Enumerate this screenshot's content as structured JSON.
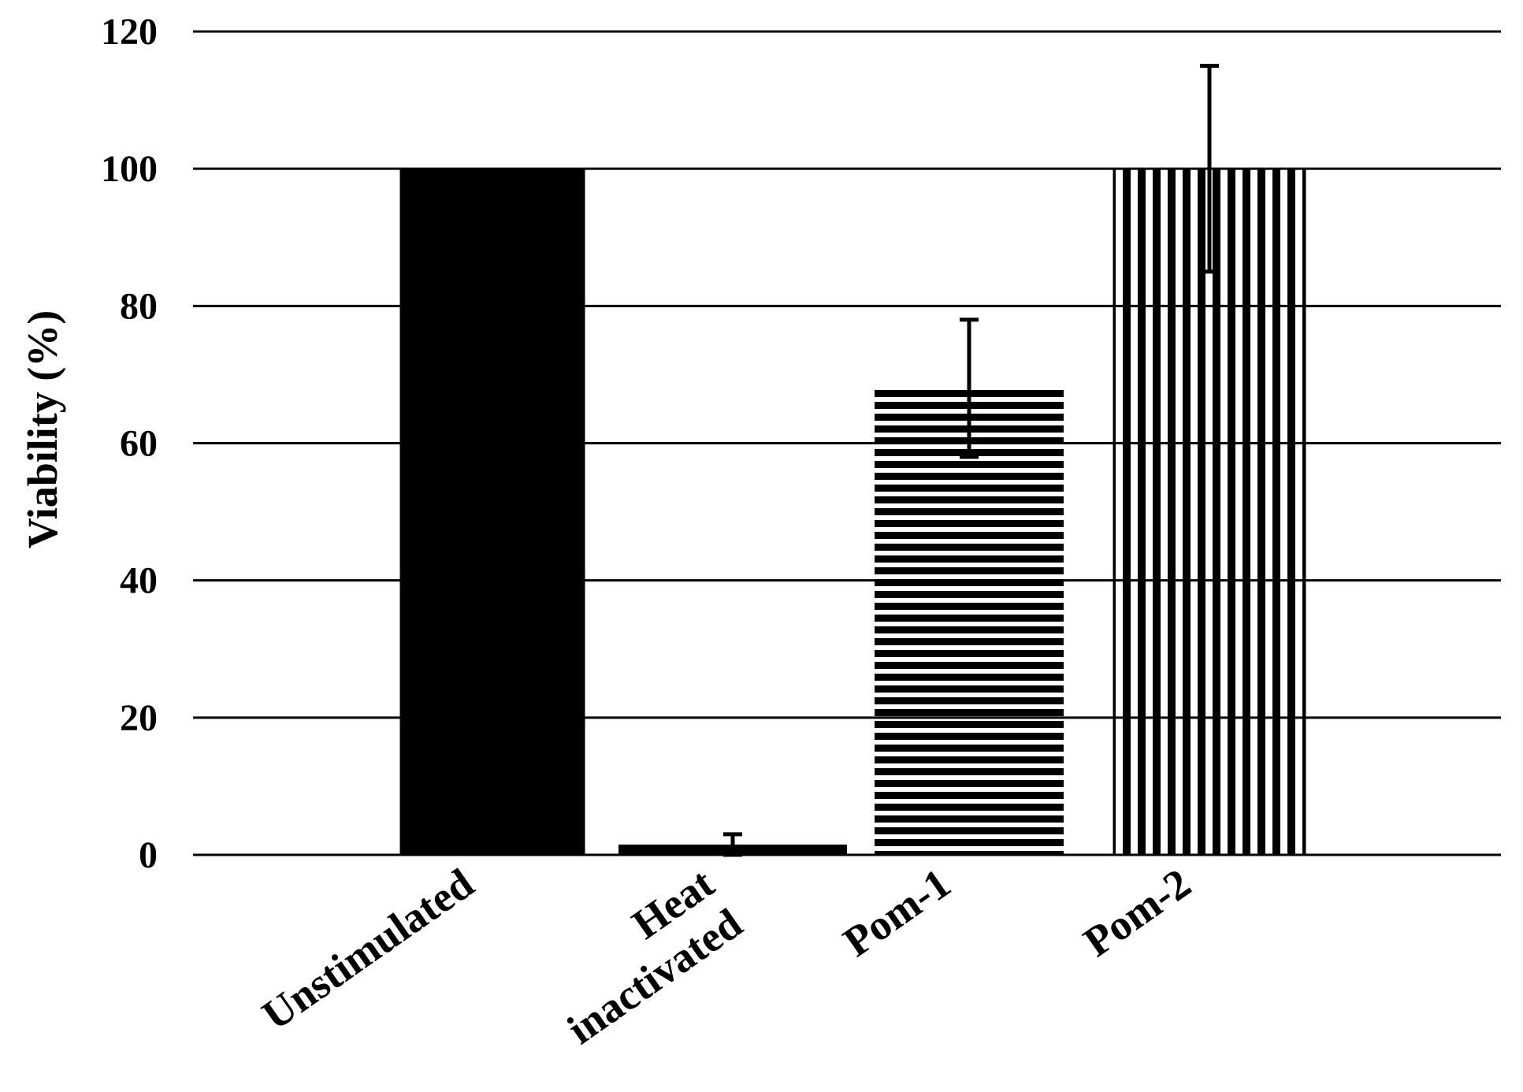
{
  "chart_data": {
    "type": "bar",
    "title": "",
    "xlabel": "",
    "ylabel": "Viability (%)",
    "ylim": [
      0,
      120
    ],
    "yticks": [
      0,
      20,
      40,
      60,
      80,
      100,
      120
    ],
    "grid": true,
    "categories": [
      "Unstimulated",
      "Heat inactivated",
      "Pom-1",
      "Pom-2"
    ],
    "category_lines": [
      [
        "Unstimulated"
      ],
      [
        "Heat",
        "inactivated"
      ],
      [
        "Pom-1"
      ],
      [
        "Pom-2"
      ]
    ],
    "values": [
      100,
      1.5,
      68,
      100
    ],
    "errors": [
      0,
      1.5,
      10,
      15
    ],
    "fills": [
      "solid",
      "solid",
      "horizontal-stripes",
      "vertical-stripes"
    ],
    "bar_color": "#000000"
  }
}
